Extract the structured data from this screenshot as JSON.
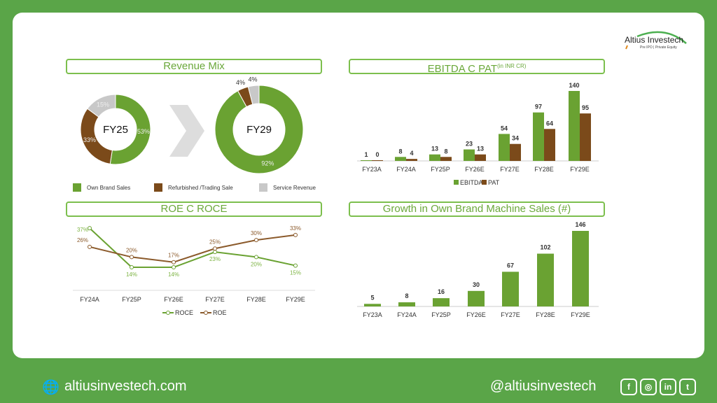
{
  "brand": {
    "name": "Altius Investech",
    "tagline": "Pre IPO | Private Equity"
  },
  "footer": {
    "website": "altiusinvestech.com",
    "handle": "@altiusinvestech",
    "social": [
      "facebook",
      "instagram",
      "linkedin",
      "twitter"
    ],
    "social_glyphs": [
      "f",
      "◎",
      "in",
      "t"
    ]
  },
  "panels": {
    "revenue_mix": "Revenue Mix",
    "ebitda": "EBITDA C PAT",
    "ebitda_unit": "(in INR CR)",
    "roe": "ROE C ROCE",
    "growth": "Growth in Own Brand Machine Sales (#)"
  },
  "colors": {
    "green": "#6aa232",
    "brown": "#7b4a1a",
    "gray": "#c8c8c8"
  },
  "chart_data": [
    {
      "type": "pie",
      "title": "Revenue Mix",
      "donuts": [
        {
          "label": "FY25",
          "values": [
            53,
            33,
            15
          ]
        },
        {
          "label": "FY29",
          "values": [
            92,
            4,
            4
          ]
        }
      ],
      "legend": [
        "Own Brand Sales",
        "Refurbished /Trading Sale",
        "Service Revenue"
      ]
    },
    {
      "type": "bar",
      "title": "EBITDA C PAT (in INR CR)",
      "categories": [
        "FY23A",
        "FY24A",
        "FY25P",
        "FY26E",
        "FY27E",
        "FY28E",
        "FY29E"
      ],
      "series": [
        {
          "name": "EBITDA",
          "values": [
            1,
            8,
            13,
            23,
            54,
            97,
            140
          ]
        },
        {
          "name": "PAT",
          "values": [
            0,
            4,
            8,
            13,
            34,
            64,
            95
          ]
        }
      ],
      "legend": "bottom"
    },
    {
      "type": "line",
      "title": "ROE C ROCE",
      "categories": [
        "FY24A",
        "FY25P",
        "FY26E",
        "FY27E",
        "FY28E",
        "FY29E"
      ],
      "series": [
        {
          "name": "ROCE",
          "values": [
            37,
            14,
            14,
            23,
            20,
            15
          ]
        },
        {
          "name": "ROE",
          "values": [
            26,
            20,
            17,
            25,
            30,
            33
          ]
        }
      ],
      "unit": "%",
      "legend": "bottom"
    },
    {
      "type": "bar",
      "title": "Growth in Own Brand Machine Sales (#)",
      "categories": [
        "FY23A",
        "FY24A",
        "FY25P",
        "FY26E",
        "FY27E",
        "FY28E",
        "FY29E"
      ],
      "values": [
        5,
        8,
        16,
        30,
        67,
        102,
        146
      ]
    }
  ]
}
